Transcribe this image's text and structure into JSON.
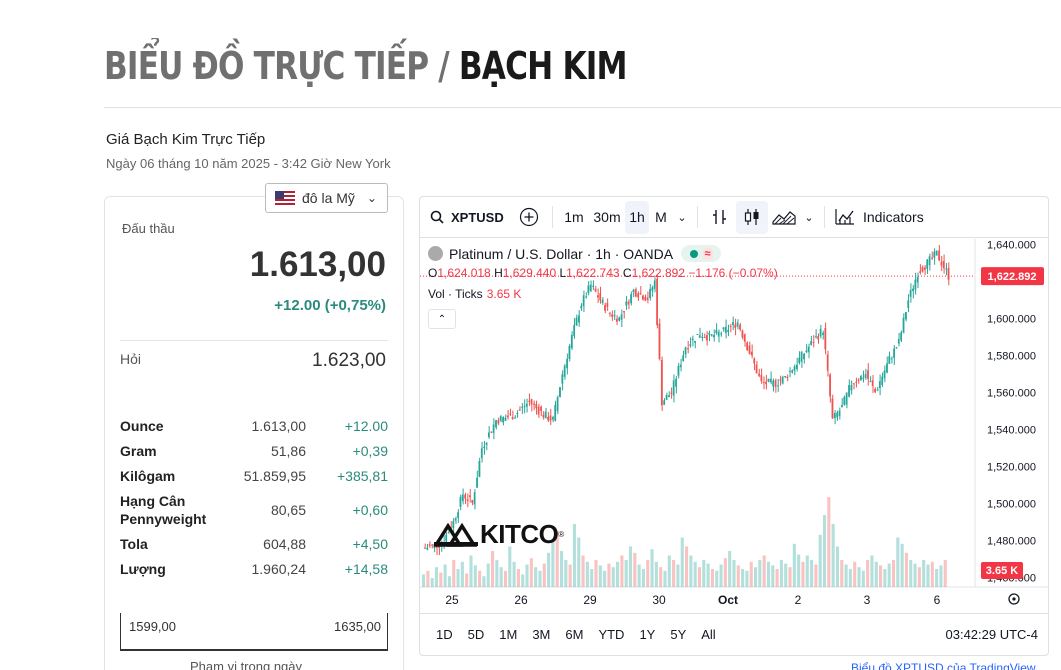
{
  "header": {
    "title_prefix": "BIỂU ĐỒ TRỰC TIẾP /",
    "title_metal": "BẠCH KIM",
    "subtitle": "Giá Bạch Kim Trực Tiếp",
    "date_line": "Ngày 06 tháng 10 năm 2025 - 3:42 Giờ New York"
  },
  "currency": {
    "label": "đô la Mỹ",
    "flag": "us-flag-icon"
  },
  "price_panel": {
    "bid_label": "Đấu thầu",
    "bid_value": "1.613,00",
    "bid_change": "+12.00 (+0,75%)",
    "ask_label": "Hỏi",
    "ask_value": "1.623,00",
    "units": [
      {
        "name": "Ounce",
        "value": "1.613,00",
        "change": "+12.00"
      },
      {
        "name": "Gram",
        "value": "51,86",
        "change": "+0,39"
      },
      {
        "name": "Kilôgam",
        "value": "51.859,95",
        "change": "+385,81"
      },
      {
        "name": "Hạng Cân Pennyweight",
        "value": "80,65",
        "change": "+0,60"
      },
      {
        "name": "Tola",
        "value": "604,88",
        "change": "+4,50"
      },
      {
        "name": "Lượng",
        "value": "1.960,24",
        "change": "+14,58"
      }
    ],
    "range_low": "1599,00",
    "range_high": "1635,00",
    "range_label": "Phạm vi trong ngày"
  },
  "chart_toolbar": {
    "symbol": "XPTUSD",
    "intervals": [
      "1m",
      "30m",
      "1h",
      "M"
    ],
    "active_interval": "1h",
    "indicators_label": "Indicators"
  },
  "chart_legend": {
    "title": "Platinum / U.S. Dollar · 1h · OANDA",
    "o_label": "O",
    "o": "1,624.018",
    "h_label": "H",
    "h": "1,629.440",
    "l_label": "L",
    "l": "1,622.743",
    "c_label": "C",
    "c": "1,622.892",
    "change": "−1.176 (−0.07%)",
    "vol_label": "Vol · Ticks",
    "vol_value": "3.65 K"
  },
  "chart_bottom": {
    "ranges": [
      "1D",
      "5D",
      "1M",
      "3M",
      "6M",
      "YTD",
      "1Y",
      "5Y",
      "All"
    ],
    "clock": "03:42:29 UTC-4"
  },
  "watermark": "KITCO",
  "footer_link": "Biểu đồ XPTUSD của TradingView",
  "colors": {
    "up": "#26a69a",
    "down": "#ef5350",
    "accent": "#2b8a7e",
    "price_tag": "#f23645"
  },
  "chart_data": {
    "type": "candlestick",
    "x_ticks": [
      "25",
      "26",
      "29",
      "30",
      "Oct",
      "2",
      "3",
      "6"
    ],
    "y_ticks": [
      "1,640.000",
      "1,600.000",
      "1,580.000",
      "1,560.000",
      "1,540.000",
      "1,520.000",
      "1,500.000",
      "1,480.000",
      "1,460.000"
    ],
    "y_tick_values": [
      1640,
      1600,
      1580,
      1560,
      1540,
      1520,
      1500,
      1480,
      1460
    ],
    "ylim": [
      1458,
      1643
    ],
    "last_price": "1,622.892",
    "last_price_value": 1622.892,
    "last_volume": "3.65 K",
    "path_points": [
      [
        0,
        1476
      ],
      [
        7,
        1478
      ],
      [
        12,
        1490
      ],
      [
        16,
        1505
      ],
      [
        20,
        1500
      ],
      [
        24,
        1530
      ],
      [
        30,
        1545
      ],
      [
        38,
        1548
      ],
      [
        44,
        1555
      ],
      [
        50,
        1548
      ],
      [
        54,
        1545
      ],
      [
        58,
        1570
      ],
      [
        62,
        1590
      ],
      [
        66,
        1608
      ],
      [
        70,
        1618
      ],
      [
        74,
        1610
      ],
      [
        78,
        1603
      ],
      [
        82,
        1600
      ],
      [
        88,
        1615
      ],
      [
        94,
        1611
      ],
      [
        97,
        1620
      ],
      [
        100,
        1555
      ],
      [
        104,
        1560
      ],
      [
        110,
        1585
      ],
      [
        116,
        1592
      ],
      [
        120,
        1590
      ],
      [
        126,
        1593
      ],
      [
        132,
        1598
      ],
      [
        136,
        1585
      ],
      [
        142,
        1565
      ],
      [
        148,
        1565
      ],
      [
        152,
        1568
      ],
      [
        158,
        1578
      ],
      [
        164,
        1588
      ],
      [
        168,
        1594
      ],
      [
        170,
        1570
      ],
      [
        172,
        1545
      ],
      [
        176,
        1552
      ],
      [
        180,
        1565
      ],
      [
        186,
        1570
      ],
      [
        190,
        1560
      ],
      [
        196,
        1578
      ],
      [
        200,
        1587
      ],
      [
        204,
        1610
      ],
      [
        208,
        1625
      ],
      [
        212,
        1630
      ],
      [
        216,
        1635
      ],
      [
        219,
        1628
      ],
      [
        221,
        1623
      ]
    ],
    "volume_levels": [
      14,
      18,
      10,
      22,
      16,
      25,
      12,
      30,
      20,
      28,
      15,
      35,
      24,
      18,
      12,
      26,
      40,
      30,
      22,
      18,
      45,
      28,
      20,
      14,
      25,
      32,
      22,
      18,
      26,
      38,
      50,
      62,
      40,
      30,
      25,
      70,
      55,
      35,
      28,
      20,
      30,
      24,
      18,
      26,
      22,
      28,
      35,
      30,
      45,
      38,
      25,
      20,
      30,
      42,
      28,
      22,
      18,
      35,
      30,
      25,
      55,
      45,
      35,
      28,
      22,
      30,
      26,
      20,
      18,
      25,
      32,
      40,
      30,
      24,
      20,
      18,
      28,
      22,
      30,
      35,
      28,
      24,
      20,
      30,
      26,
      22,
      48,
      36,
      28,
      35,
      30,
      25,
      58,
      80,
      100,
      70,
      45,
      30,
      25,
      20,
      28,
      22,
      18,
      30,
      35,
      28,
      24,
      20,
      26,
      30,
      55,
      48,
      38,
      30,
      26,
      22,
      30,
      25,
      28,
      20,
      24,
      30
    ]
  }
}
